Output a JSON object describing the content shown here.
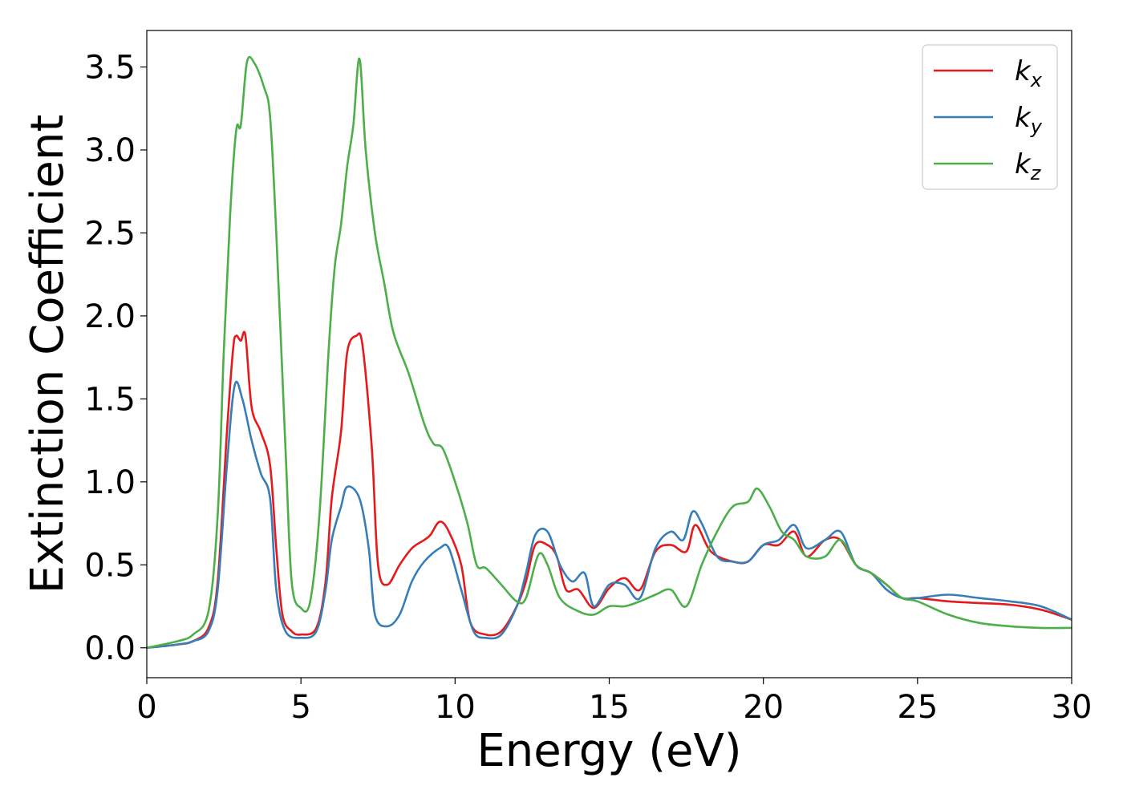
{
  "chart_data": {
    "type": "line",
    "xlabel": "Energy (eV)",
    "ylabel": "Extinction Coefficient",
    "xlim": [
      0,
      30
    ],
    "ylim": [
      -0.18,
      3.72
    ],
    "x_ticks": [
      "0",
      "5",
      "10",
      "15",
      "20",
      "25",
      "30"
    ],
    "y_ticks": [
      "0.0",
      "0.5",
      "1.0",
      "1.5",
      "2.0",
      "2.5",
      "3.0",
      "3.5"
    ],
    "grid": false,
    "legend_position": "top-right",
    "series": [
      {
        "name": "k_x",
        "base": "k",
        "sub": "x",
        "color": "#e41a1c",
        "points": [
          [
            0,
            0
          ],
          [
            1,
            0.02
          ],
          [
            1.5,
            0.04
          ],
          [
            2,
            0.12
          ],
          [
            2.3,
            0.4
          ],
          [
            2.6,
            1.3
          ],
          [
            2.8,
            1.8
          ],
          [
            2.9,
            1.88
          ],
          [
            3.05,
            1.85
          ],
          [
            3.2,
            1.88
          ],
          [
            3.4,
            1.45
          ],
          [
            3.7,
            1.3
          ],
          [
            4.0,
            1.1
          ],
          [
            4.2,
            0.6
          ],
          [
            4.4,
            0.2
          ],
          [
            4.7,
            0.1
          ],
          [
            5,
            0.08
          ],
          [
            5.5,
            0.12
          ],
          [
            5.8,
            0.4
          ],
          [
            6.0,
            0.9
          ],
          [
            6.3,
            1.3
          ],
          [
            6.5,
            1.78
          ],
          [
            6.8,
            1.88
          ],
          [
            7.0,
            1.82
          ],
          [
            7.3,
            1.2
          ],
          [
            7.5,
            0.5
          ],
          [
            7.8,
            0.38
          ],
          [
            8.2,
            0.5
          ],
          [
            8.6,
            0.6
          ],
          [
            9.0,
            0.65
          ],
          [
            9.2,
            0.68
          ],
          [
            9.5,
            0.76
          ],
          [
            9.8,
            0.7
          ],
          [
            10.2,
            0.5
          ],
          [
            10.5,
            0.15
          ],
          [
            11,
            0.08
          ],
          [
            11.5,
            0.1
          ],
          [
            12,
            0.25
          ],
          [
            12.3,
            0.4
          ],
          [
            12.6,
            0.62
          ],
          [
            13.0,
            0.62
          ],
          [
            13.3,
            0.55
          ],
          [
            13.6,
            0.35
          ],
          [
            14.0,
            0.35
          ],
          [
            14.5,
            0.24
          ],
          [
            15,
            0.36
          ],
          [
            15.5,
            0.42
          ],
          [
            16,
            0.35
          ],
          [
            16.5,
            0.58
          ],
          [
            17,
            0.62
          ],
          [
            17.5,
            0.58
          ],
          [
            17.8,
            0.74
          ],
          [
            18.3,
            0.58
          ],
          [
            19,
            0.52
          ],
          [
            19.5,
            0.52
          ],
          [
            20,
            0.62
          ],
          [
            20.5,
            0.62
          ],
          [
            21,
            0.7
          ],
          [
            21.4,
            0.55
          ],
          [
            22,
            0.65
          ],
          [
            22.5,
            0.65
          ],
          [
            23,
            0.5
          ],
          [
            23.5,
            0.45
          ],
          [
            24,
            0.38
          ],
          [
            24.5,
            0.3
          ],
          [
            25,
            0.3
          ],
          [
            26,
            0.28
          ],
          [
            27,
            0.27
          ],
          [
            28,
            0.26
          ],
          [
            29,
            0.23
          ],
          [
            30,
            0.17
          ]
        ]
      },
      {
        "name": "k_y",
        "base": "k",
        "sub": "y",
        "color": "#377eb8",
        "points": [
          [
            0,
            0
          ],
          [
            1,
            0.02
          ],
          [
            1.5,
            0.04
          ],
          [
            2,
            0.1
          ],
          [
            2.3,
            0.35
          ],
          [
            2.6,
            1.1
          ],
          [
            2.85,
            1.58
          ],
          [
            3.1,
            1.5
          ],
          [
            3.4,
            1.25
          ],
          [
            3.7,
            1.05
          ],
          [
            4.0,
            0.9
          ],
          [
            4.2,
            0.35
          ],
          [
            4.5,
            0.1
          ],
          [
            5,
            0.06
          ],
          [
            5.5,
            0.1
          ],
          [
            5.8,
            0.35
          ],
          [
            6.0,
            0.65
          ],
          [
            6.3,
            0.85
          ],
          [
            6.5,
            0.97
          ],
          [
            6.9,
            0.9
          ],
          [
            7.2,
            0.6
          ],
          [
            7.4,
            0.2
          ],
          [
            7.8,
            0.13
          ],
          [
            8.2,
            0.2
          ],
          [
            8.6,
            0.4
          ],
          [
            9.0,
            0.52
          ],
          [
            9.5,
            0.6
          ],
          [
            9.8,
            0.6
          ],
          [
            10.2,
            0.35
          ],
          [
            10.6,
            0.1
          ],
          [
            11,
            0.06
          ],
          [
            11.5,
            0.08
          ],
          [
            12,
            0.25
          ],
          [
            12.3,
            0.45
          ],
          [
            12.6,
            0.68
          ],
          [
            13.0,
            0.7
          ],
          [
            13.4,
            0.5
          ],
          [
            13.8,
            0.4
          ],
          [
            14.2,
            0.45
          ],
          [
            14.5,
            0.25
          ],
          [
            15,
            0.38
          ],
          [
            15.5,
            0.38
          ],
          [
            16,
            0.3
          ],
          [
            16.5,
            0.6
          ],
          [
            17,
            0.7
          ],
          [
            17.4,
            0.65
          ],
          [
            17.7,
            0.82
          ],
          [
            18,
            0.75
          ],
          [
            18.5,
            0.55
          ],
          [
            19,
            0.52
          ],
          [
            19.5,
            0.52
          ],
          [
            20,
            0.62
          ],
          [
            20.5,
            0.65
          ],
          [
            21,
            0.74
          ],
          [
            21.4,
            0.6
          ],
          [
            22,
            0.65
          ],
          [
            22.5,
            0.7
          ],
          [
            23,
            0.5
          ],
          [
            23.5,
            0.45
          ],
          [
            24,
            0.35
          ],
          [
            24.5,
            0.3
          ],
          [
            25,
            0.3
          ],
          [
            26,
            0.32
          ],
          [
            27,
            0.3
          ],
          [
            28,
            0.28
          ],
          [
            29,
            0.25
          ],
          [
            30,
            0.17
          ]
        ]
      },
      {
        "name": "k_z",
        "base": "k",
        "sub": "z",
        "color": "#4daf4a",
        "points": [
          [
            0,
            0
          ],
          [
            1,
            0.04
          ],
          [
            1.5,
            0.08
          ],
          [
            2,
            0.22
          ],
          [
            2.3,
            0.8
          ],
          [
            2.5,
            1.8
          ],
          [
            2.7,
            2.6
          ],
          [
            2.9,
            3.12
          ],
          [
            3.05,
            3.15
          ],
          [
            3.25,
            3.53
          ],
          [
            3.5,
            3.52
          ],
          [
            3.8,
            3.38
          ],
          [
            4.0,
            3.2
          ],
          [
            4.2,
            2.5
          ],
          [
            4.5,
            1.2
          ],
          [
            4.7,
            0.4
          ],
          [
            5,
            0.24
          ],
          [
            5.3,
            0.28
          ],
          [
            5.6,
            0.8
          ],
          [
            5.9,
            1.8
          ],
          [
            6.1,
            2.3
          ],
          [
            6.3,
            2.55
          ],
          [
            6.5,
            2.9
          ],
          [
            6.7,
            3.15
          ],
          [
            6.9,
            3.55
          ],
          [
            7.1,
            3.0
          ],
          [
            7.4,
            2.5
          ],
          [
            7.7,
            2.2
          ],
          [
            8.0,
            1.9
          ],
          [
            8.5,
            1.65
          ],
          [
            9.0,
            1.35
          ],
          [
            9.3,
            1.23
          ],
          [
            9.6,
            1.2
          ],
          [
            10.0,
            1.0
          ],
          [
            10.4,
            0.75
          ],
          [
            10.7,
            0.5
          ],
          [
            11,
            0.48
          ],
          [
            11.5,
            0.38
          ],
          [
            12,
            0.28
          ],
          [
            12.3,
            0.3
          ],
          [
            12.7,
            0.56
          ],
          [
            13.0,
            0.5
          ],
          [
            13.4,
            0.3
          ],
          [
            14,
            0.22
          ],
          [
            14.5,
            0.2
          ],
          [
            15,
            0.25
          ],
          [
            15.5,
            0.25
          ],
          [
            16,
            0.28
          ],
          [
            16.5,
            0.32
          ],
          [
            17,
            0.35
          ],
          [
            17.5,
            0.25
          ],
          [
            18,
            0.5
          ],
          [
            18.5,
            0.7
          ],
          [
            19,
            0.85
          ],
          [
            19.5,
            0.88
          ],
          [
            19.8,
            0.96
          ],
          [
            20.2,
            0.85
          ],
          [
            20.6,
            0.7
          ],
          [
            21,
            0.65
          ],
          [
            21.4,
            0.55
          ],
          [
            22,
            0.55
          ],
          [
            22.5,
            0.65
          ],
          [
            23,
            0.5
          ],
          [
            23.5,
            0.45
          ],
          [
            24,
            0.38
          ],
          [
            24.5,
            0.3
          ],
          [
            25,
            0.28
          ],
          [
            26,
            0.2
          ],
          [
            27,
            0.15
          ],
          [
            28,
            0.13
          ],
          [
            29,
            0.12
          ],
          [
            30,
            0.12
          ]
        ]
      }
    ]
  }
}
